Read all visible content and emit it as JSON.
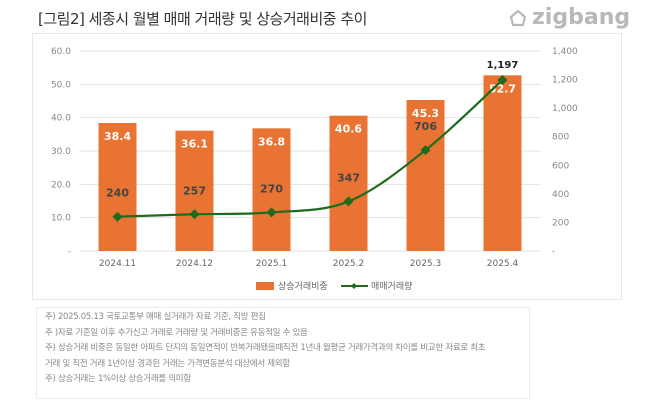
{
  "header": {
    "title": "[그림2] 세종시 월별 매매 거래량 및 상승거래비중 추이",
    "logo": "zigbang"
  },
  "chart_data": {
    "type": "bar+line",
    "categories": [
      "2024.11",
      "2024.12",
      "2025.1",
      "2025.2",
      "2025.3",
      "2025.4"
    ],
    "series": [
      {
        "name": "상승거래비중",
        "type": "bar",
        "axis": "left",
        "values": [
          38.4,
          36.1,
          36.8,
          40.6,
          45.3,
          52.7
        ],
        "labels": [
          "38.4",
          "36.1",
          "36.8",
          "40.6",
          "45.3",
          "52.7"
        ],
        "color": "#E87332"
      },
      {
        "name": "매매거래량",
        "type": "line",
        "axis": "right",
        "values": [
          240,
          257,
          270,
          347,
          706,
          1197
        ],
        "labels": [
          "240",
          "257",
          "270",
          "347",
          "706",
          "1,197"
        ],
        "color": "#1E6B1E"
      }
    ],
    "y_left": {
      "range": [
        0,
        60
      ],
      "ticks": [
        "-",
        "10.0",
        "20.0",
        "30.0",
        "40.0",
        "50.0",
        "60.0"
      ]
    },
    "y_right": {
      "range": [
        0,
        1400
      ],
      "ticks": [
        "-",
        "200",
        "400",
        "600",
        "800",
        "1,000",
        "1,200",
        "1,400"
      ]
    },
    "grid": true,
    "legend": "bottom"
  },
  "notes": [
    "주) 2025.05.13 국토교통부 매매 실거래가 자료 기준, 직방 편집",
    "주 )자료 기준일 이후 추가신고 거래로 거래량 및 거래비중은 유동적일 수 있음",
    "주) 상승거래 비중은 동일한 아파트 단지의 동일면적이 반복거래됐을때직전 1년내 월평균 거래가격과의 차이를 비교한 자료로 최초",
    "거래 및 직전 거래 1년이상 경과된 거래는 가격변동분석 대상에서 제외함",
    "주) 상승거래는 1%이상 상승거래를 의미함"
  ]
}
